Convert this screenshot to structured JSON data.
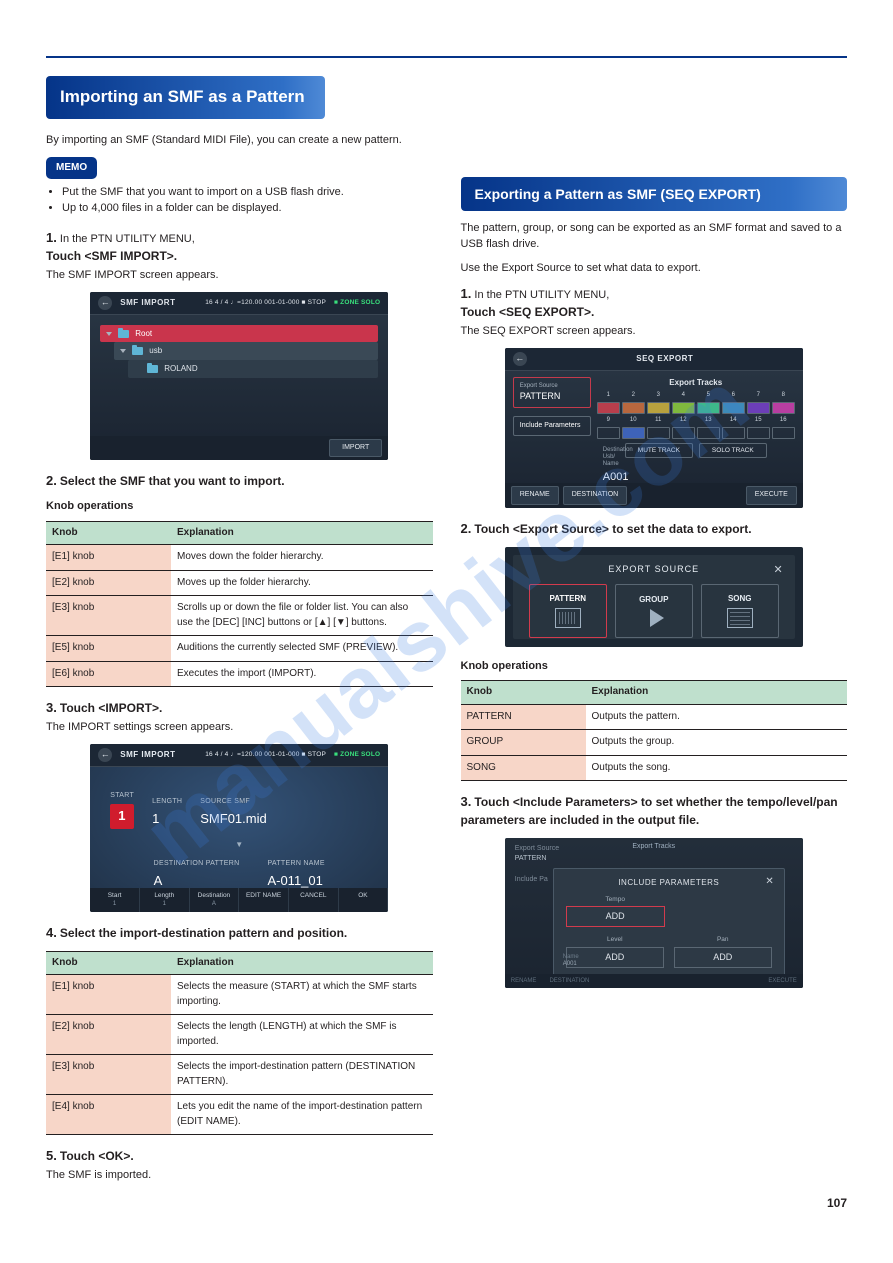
{
  "page_number": "107",
  "watermark": "manualshive.com",
  "hr_color": "#053488",
  "h1": "Importing an SMF as a Pattern",
  "h2": "Exporting a Pattern as SMF (SEQ EXPORT)",
  "memo_label": "MEMO",
  "left": {
    "intro": "By importing an SMF (Standard MIDI File), you can create a new pattern.",
    "memo_bullets": [
      "Put the SMF that you want to import on a USB flash drive.",
      "Up to 4,000 files in a folder can be displayed."
    ],
    "step1": {
      "num": "1.",
      "txt": "Touch <SMF IMPORT>.",
      "sub": "The SMF IMPORT screen appears."
    },
    "step2_pre": "In the PTN UTILITY MENU,",
    "step2": {
      "num": "2.",
      "txt": "Select the SMF that you want to import."
    },
    "knob_ops_title": "Knob operations",
    "knob_table": [
      {
        "k": "[E1] knob",
        "v": "Moves down the folder hierarchy."
      },
      {
        "k": "[E2] knob",
        "v": "Moves up the folder hierarchy."
      },
      {
        "k": "[E3] knob",
        "v": "Scrolls up or down the file or folder list. You can also use the [DEC] [INC] buttons or [▲] [▼] buttons."
      },
      {
        "k": "[E5] knob",
        "v": "Auditions the currently selected SMF (PREVIEW)."
      },
      {
        "k": "[E6] knob",
        "v": "Executes the import (IMPORT)."
      }
    ],
    "step3": {
      "num": "3.",
      "txt": "Touch <IMPORT>.",
      "sub": "The IMPORT settings screen appears."
    },
    "step4": {
      "num": "4.",
      "txt": "Select the import-destination pattern and position."
    },
    "knob_table2": [
      {
        "k": "[E1] knob",
        "v": "Selects the measure (START) at which the SMF starts importing."
      },
      {
        "k": "[E2] knob",
        "v": "Selects the length (LENGTH) at which the SMF is imported."
      },
      {
        "k": "[E3] knob",
        "v": "Selects the import-destination pattern (DESTINATION PATTERN)."
      },
      {
        "k": "[E4] knob",
        "v": "Lets you edit the name of the import-destination pattern (EDIT NAME)."
      }
    ],
    "step5": {
      "num": "5.",
      "txt": "Touch <OK>.",
      "sub": "The SMF is imported."
    },
    "smf1": {
      "title": "SMF IMPORT",
      "stats": "16  4 / 4  ♩=120.00   001-01-000   ■ STOP",
      "zone": "■ ZONE SOLO",
      "rows": [
        {
          "name": "Root",
          "cls": "sel"
        },
        {
          "name": "usb",
          "cls": "sub"
        },
        {
          "name": "ROLAND",
          "cls": "sub2"
        }
      ],
      "import_btn": "IMPORT"
    },
    "smf2": {
      "title": "SMF IMPORT",
      "stats": "16  4 / 4  ♩=120.00   001-01-000   ■ STOP",
      "zone": "■ ZONE SOLO",
      "start_l": "START",
      "start_v": "1",
      "length_l": "LENGTH",
      "length_v": "1",
      "src_l": "SOURCE SMF",
      "src_v": "SMF01.mid",
      "dest_l": "DESTINATION PATTERN",
      "dest_v": "A",
      "name_l": "PATTERN NAME",
      "name_v": "A-011_01",
      "bottom": [
        {
          "t": "Start",
          "s": "1"
        },
        {
          "t": "Length",
          "s": "1"
        },
        {
          "t": "Destination",
          "s": "A"
        },
        {
          "t": "EDIT NAME",
          "s": ""
        },
        {
          "t": "CANCEL",
          "s": ""
        },
        {
          "t": "OK",
          "s": ""
        }
      ]
    }
  },
  "right": {
    "intro1": "The pattern, group, or song can be exported as an SMF format and saved to a USB flash drive.",
    "intro2": "Use the Export Source to set what data to export.",
    "step1_pre": "In the PTN UTILITY MENU,",
    "step1": {
      "num": "1.",
      "txt": "Touch <SEQ EXPORT>.",
      "sub": "The SEQ EXPORT screen appears."
    },
    "step2": {
      "num": "2.",
      "txt": "Touch <Export Source> to set the data to export."
    },
    "source_table_title": "Knob operations",
    "source_table": [
      {
        "k": "PATTERN",
        "v": "Outputs the pattern."
      },
      {
        "k": "GROUP",
        "v": "Outputs the group."
      },
      {
        "k": "SONG",
        "v": "Outputs the song."
      }
    ],
    "step3": {
      "num": "3.",
      "txt": "Touch <Include Parameters> to set whether the tempo/level/pan parameters are included in the output file."
    },
    "exp": {
      "title": "SEQ EXPORT",
      "source_l": "Export Source",
      "source_v": "PATTERN",
      "include_l": "Include Parameters",
      "tracks_hdr": "Export Tracks",
      "nums": [
        "1",
        "2",
        "3",
        "4",
        "5",
        "6",
        "7",
        "8",
        "9",
        "10",
        "11",
        "12",
        "13",
        "14",
        "15",
        "16"
      ],
      "on_cells": [
        0,
        1,
        2,
        3,
        4,
        5,
        6,
        7,
        9
      ],
      "cell_colors": [
        "#b83e4c",
        "#b8673e",
        "#b8a13e",
        "#7fb83e",
        "#3eb88a",
        "#3e8bb8",
        "#6c3eb8",
        "#b83ea1",
        "#6b7682",
        "#3e63b8",
        "#6b7682",
        "#6b7682",
        "#6b7682",
        "#6b7682",
        "#6b7682",
        "#6b7682"
      ],
      "mute_btn": "MUTE TRACK",
      "solo_btn": "SOLO TRACK",
      "dest_l": "Destination\nUsb/\nName",
      "dest_v": "A001",
      "btn_rename": "RENAME",
      "btn_dest": "DESTINATION",
      "btn_exec": "EXECUTE"
    },
    "src_dialog": {
      "title": "EXPORT SOURCE",
      "opts": [
        "PATTERN",
        "GROUP",
        "SONG"
      ]
    },
    "inc_dialog": {
      "title": "INCLUDE PARAMETERS",
      "ghost_pattern": "PATTERN",
      "ghost_hdr": "Export Tracks",
      "tempo_l": "Tempo",
      "tempo_v": "ADD",
      "level_l": "Level",
      "level_v": "ADD",
      "pan_l": "Pan",
      "pan_v": "ADD",
      "ghost_name_l": "Name",
      "ghost_name_v": "A001",
      "bottom": [
        "RENAME",
        "DESTINATION",
        "EXECUTE"
      ]
    }
  }
}
